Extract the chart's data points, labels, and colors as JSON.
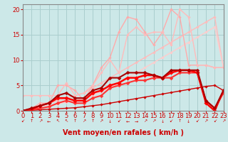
{
  "title": "",
  "xlabel": "Vent moyen/en rafales ( km/h )",
  "ylabel": "",
  "xlim": [
    0,
    23
  ],
  "ylim": [
    0,
    21
  ],
  "yticks": [
    0,
    5,
    10,
    15,
    20
  ],
  "xticks": [
    0,
    1,
    2,
    3,
    4,
    5,
    6,
    7,
    8,
    9,
    10,
    11,
    12,
    13,
    14,
    15,
    16,
    17,
    18,
    19,
    20,
    21,
    22,
    23
  ],
  "background_color": "#cce8e8",
  "grid_color": "#aacece",
  "series": [
    {
      "x": [
        0,
        1,
        2,
        3,
        4,
        5,
        6,
        7,
        8,
        9,
        10,
        11,
        12,
        13,
        14,
        15,
        16,
        17,
        18,
        19,
        20,
        21,
        22,
        23
      ],
      "y": [
        0,
        0.5,
        1.0,
        1.5,
        2.0,
        2.5,
        3.0,
        3.5,
        4.5,
        5.5,
        6.5,
        7.5,
        8.5,
        9.5,
        10.5,
        11.5,
        12.5,
        13.5,
        14.5,
        15.5,
        16.5,
        17.5,
        18.5,
        8.5
      ],
      "color": "#ffbbbb",
      "linewidth": 1.0,
      "marker": "D",
      "markersize": 1.8
    },
    {
      "x": [
        0,
        1,
        2,
        3,
        4,
        5,
        6,
        7,
        8,
        9,
        10,
        11,
        12,
        13,
        14,
        15,
        16,
        17,
        18,
        19,
        20,
        21,
        22,
        23
      ],
      "y": [
        0,
        0.3,
        0.6,
        1.0,
        1.3,
        1.7,
        2.0,
        2.5,
        3.0,
        3.8,
        4.5,
        5.5,
        6.5,
        7.5,
        8.5,
        9.5,
        10.5,
        11.5,
        12.5,
        13.5,
        14.5,
        15.5,
        16.5,
        8.5
      ],
      "color": "#ffcccc",
      "linewidth": 1.0,
      "marker": "D",
      "markersize": 1.8
    },
    {
      "x": [
        0,
        1,
        2,
        3,
        4,
        5,
        6,
        7,
        8,
        9,
        10,
        11,
        12,
        13,
        14,
        15,
        16,
        17,
        18,
        19,
        20,
        21,
        22,
        23
      ],
      "y": [
        0,
        0.5,
        1.5,
        1.5,
        5.0,
        5.0,
        4.0,
        2.0,
        5.0,
        8.5,
        10.5,
        15.5,
        18.5,
        18.0,
        15.5,
        13.0,
        15.5,
        20.0,
        18.5,
        9.0,
        9.0,
        9.0,
        8.5,
        8.5
      ],
      "color": "#ffaaaa",
      "linewidth": 1.0,
      "marker": "D",
      "markersize": 1.8
    },
    {
      "x": [
        0,
        1,
        2,
        3,
        4,
        5,
        6,
        7,
        8,
        9,
        10,
        11,
        12,
        13,
        14,
        15,
        16,
        17,
        18,
        19,
        20,
        21,
        22,
        23
      ],
      "y": [
        3.0,
        3.0,
        3.0,
        3.0,
        3.0,
        5.5,
        3.0,
        3.5,
        5.0,
        7.5,
        10.0,
        7.5,
        15.0,
        16.5,
        15.0,
        15.5,
        15.5,
        13.0,
        20.0,
        18.5,
        9.0,
        9.0,
        8.5,
        8.5
      ],
      "color": "#ffbbbb",
      "linewidth": 1.0,
      "marker": "D",
      "markersize": 1.8
    },
    {
      "x": [
        0,
        1,
        2,
        3,
        4,
        5,
        6,
        7,
        8,
        9,
        10,
        11,
        12,
        13,
        14,
        15,
        16,
        17,
        18,
        19,
        20,
        21,
        22,
        23
      ],
      "y": [
        0,
        0.1,
        0.2,
        0.3,
        0.4,
        0.5,
        0.6,
        0.8,
        1.0,
        1.2,
        1.5,
        1.8,
        2.1,
        2.4,
        2.7,
        3.0,
        3.3,
        3.6,
        3.9,
        4.2,
        4.5,
        4.8,
        5.0,
        4.0
      ],
      "color": "#cc0000",
      "linewidth": 1.0,
      "marker": "D",
      "markersize": 1.8
    },
    {
      "x": [
        0,
        1,
        2,
        3,
        4,
        5,
        6,
        7,
        8,
        9,
        10,
        11,
        12,
        13,
        14,
        15,
        16,
        17,
        18,
        19,
        20,
        21,
        22,
        23
      ],
      "y": [
        0,
        0.2,
        0.5,
        0.8,
        1.5,
        2.0,
        1.5,
        1.5,
        2.5,
        3.0,
        4.5,
        5.0,
        5.5,
        6.0,
        6.0,
        6.5,
        6.5,
        6.5,
        7.5,
        7.5,
        7.5,
        2.0,
        0.5,
        3.5
      ],
      "color": "#ff3333",
      "linewidth": 1.5,
      "marker": "D",
      "markersize": 2.5
    },
    {
      "x": [
        0,
        1,
        2,
        3,
        4,
        5,
        6,
        7,
        8,
        9,
        10,
        11,
        12,
        13,
        14,
        15,
        16,
        17,
        18,
        19,
        20,
        21,
        22,
        23
      ],
      "y": [
        0,
        0.3,
        1.0,
        1.5,
        2.5,
        2.5,
        2.0,
        2.0,
        3.5,
        4.0,
        5.0,
        5.5,
        6.5,
        6.5,
        7.0,
        7.0,
        6.5,
        7.5,
        8.0,
        8.0,
        7.5,
        1.5,
        0.0,
        4.0
      ],
      "color": "#ff0000",
      "linewidth": 1.8,
      "marker": "D",
      "markersize": 2.8
    },
    {
      "x": [
        0,
        1,
        2,
        3,
        4,
        5,
        6,
        7,
        8,
        9,
        10,
        11,
        12,
        13,
        14,
        15,
        16,
        17,
        18,
        19,
        20,
        21,
        22,
        23
      ],
      "y": [
        0,
        0.5,
        1.0,
        1.5,
        3.0,
        3.5,
        2.5,
        2.5,
        4.0,
        4.5,
        6.5,
        6.5,
        7.5,
        7.5,
        7.5,
        7.0,
        6.5,
        8.0,
        8.0,
        8.0,
        8.0,
        2.0,
        0.5,
        4.0
      ],
      "color": "#aa0000",
      "linewidth": 1.5,
      "marker": "D",
      "markersize": 2.5
    }
  ],
  "wind_arrows": [
    "↙",
    "↑",
    "↗",
    "←",
    "↖",
    "↖",
    "↑",
    "↗",
    "↑",
    "↗",
    "↓",
    "↙",
    "←",
    "→",
    "↗",
    "↗",
    "↓",
    "↙",
    "↑",
    "↓",
    "↙",
    "↗",
    "↙",
    "↗"
  ],
  "xlabel_color": "#cc0000",
  "tick_color": "#cc0000",
  "axis_color": "#888888",
  "font_size_xlabel": 7,
  "font_size_ticks": 6
}
